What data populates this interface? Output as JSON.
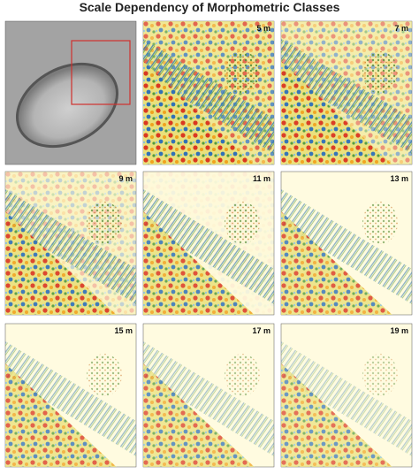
{
  "title": "Scale Dependency of Morphometric Classes",
  "panels": [
    "5 m",
    "7 m",
    "9 m",
    "11 m",
    "13 m",
    "15 m",
    "17 m",
    "19 m"
  ]
}
